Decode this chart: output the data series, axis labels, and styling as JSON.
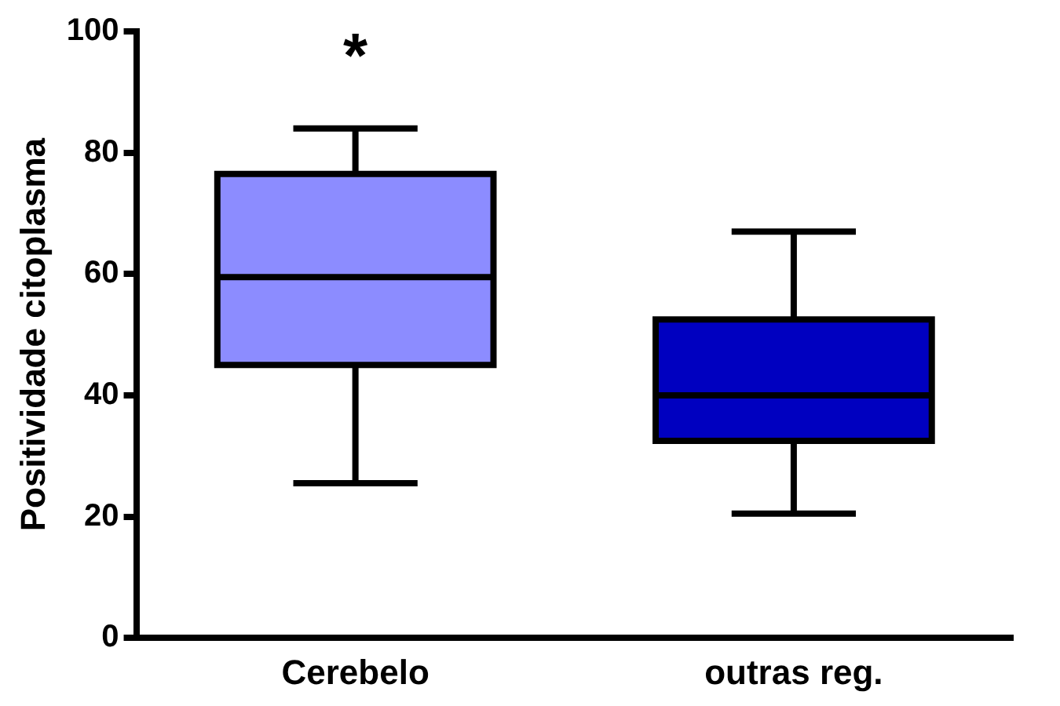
{
  "chart_data": {
    "type": "box",
    "ylabel": "Positividade citoplasma",
    "categories": [
      "Cerebelo",
      "outras reg."
    ],
    "colors": [
      "#8c8cff",
      "#0000c0"
    ],
    "boxes": [
      {
        "low": 25.5,
        "q1": 45,
        "median": 59.5,
        "q3": 76.5,
        "high": 84
      },
      {
        "low": 20.5,
        "q1": 32.5,
        "median": 40,
        "q3": 52.5,
        "high": 67
      }
    ],
    "ylim": [
      0,
      100
    ],
    "yticks": [
      0,
      20,
      40,
      60,
      80,
      100
    ],
    "grid": false,
    "legend": false,
    "annotations": [
      "*"
    ]
  }
}
